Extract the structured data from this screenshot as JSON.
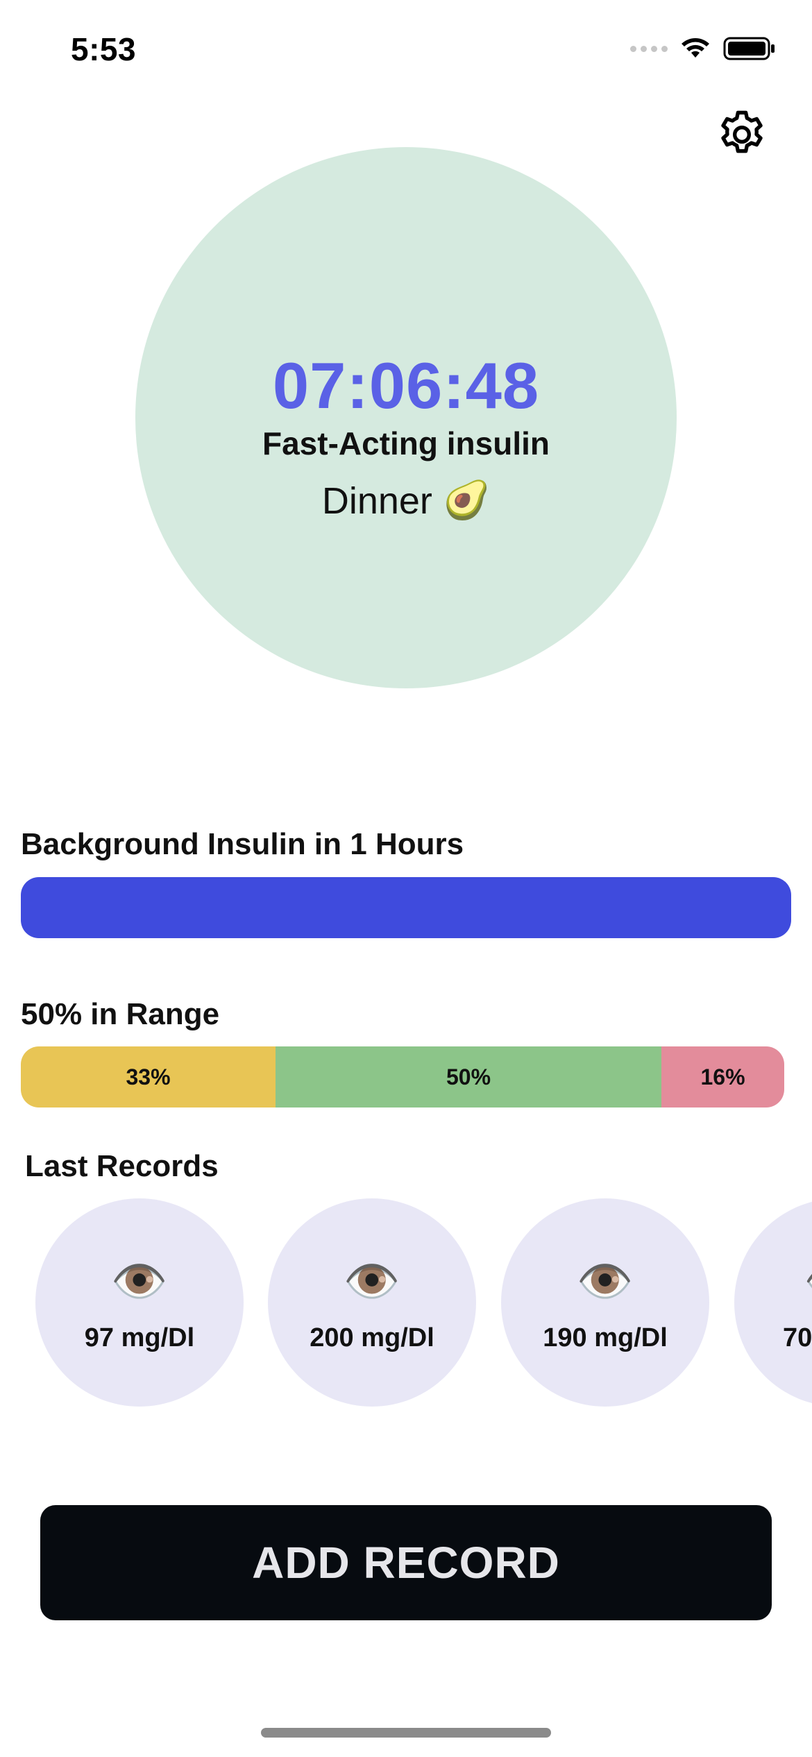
{
  "status_bar": {
    "time": "5:53",
    "icons": [
      "cellular-signal-icon",
      "wifi-icon",
      "battery-icon"
    ]
  },
  "header": {
    "settings_icon": "gear-icon"
  },
  "timer": {
    "countdown": "07:06:48",
    "insulin_type": "Fast-Acting insulin",
    "meal": "Dinner",
    "meal_emoji": "🥑"
  },
  "background_insulin": {
    "title": "Background Insulin in 1 Hours",
    "progress_fraction": 1.0
  },
  "range": {
    "title": "50% in Range",
    "segments": [
      {
        "label": "33%",
        "value": 33,
        "color": "#e8c555"
      },
      {
        "label": "50%",
        "value": 50,
        "color": "#8cc589"
      },
      {
        "label": "16%",
        "value": 16,
        "color": "#e38c9b"
      }
    ]
  },
  "last_records": {
    "title": "Last Records",
    "items": [
      {
        "icon": "👁️",
        "value": "97 mg/Dl"
      },
      {
        "icon": "👁️",
        "value": "200 mg/Dl"
      },
      {
        "icon": "👁️",
        "value": "190 mg/Dl"
      },
      {
        "icon": "👁️",
        "value": "70"
      }
    ]
  },
  "actions": {
    "add_record_label": "ADD RECORD"
  },
  "colors": {
    "accent_timer": "#5a61e6",
    "bar_blue": "#3f4bdd",
    "circle_green": "#d5eadf",
    "record_bg": "#e8e7f6",
    "button_dark": "#070b10"
  }
}
